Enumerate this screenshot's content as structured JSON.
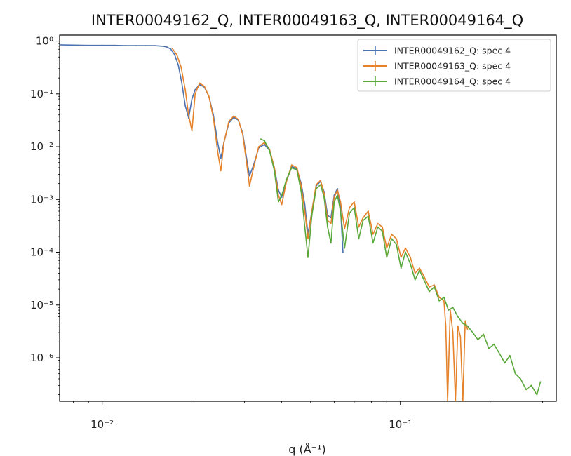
{
  "chart_data": {
    "type": "line",
    "title": "INTER00049162_Q, INTER00049163_Q, INTER00049164_Q",
    "xlabel": "q (Å⁻¹)",
    "ylabel": "",
    "xscale": "log",
    "yscale": "log",
    "xlim": [
      0.0072,
      0.3333
    ],
    "ylim": [
      1.5e-07,
      1.3
    ],
    "x_ticks": [
      {
        "value": 0.01,
        "label": "10⁻²"
      },
      {
        "value": 0.1,
        "label": "10⁻¹"
      }
    ],
    "y_ticks": [
      {
        "value": 1,
        "label": "10⁰"
      },
      {
        "value": 0.1,
        "label": "10⁻¹"
      },
      {
        "value": 0.01,
        "label": "10⁻²"
      },
      {
        "value": 0.001,
        "label": "10⁻³"
      },
      {
        "value": 0.0001,
        "label": "10⁻⁴"
      },
      {
        "value": 1e-05,
        "label": "10⁻⁵"
      },
      {
        "value": 1e-06,
        "label": "10⁻⁶"
      }
    ],
    "grid": false,
    "legend_position": "top-right",
    "series": [
      {
        "name": "INTER00049162_Q: spec 4",
        "color": "#4c72b0",
        "x": [
          0.0072,
          0.008,
          0.009,
          0.01,
          0.011,
          0.012,
          0.013,
          0.014,
          0.015,
          0.016,
          0.0165,
          0.017,
          0.0175,
          0.018,
          0.0185,
          0.019,
          0.0195,
          0.02,
          0.0205,
          0.0212,
          0.022,
          0.0228,
          0.0236,
          0.0244,
          0.025,
          0.0256,
          0.0266,
          0.0276,
          0.0286,
          0.0296,
          0.0305,
          0.0312,
          0.0322,
          0.0335,
          0.035,
          0.0364,
          0.0378,
          0.039,
          0.04,
          0.0415,
          0.0432,
          0.045,
          0.0465,
          0.0478,
          0.049,
          0.0505,
          0.0522,
          0.054,
          0.0555,
          0.057,
          0.0585,
          0.06,
          0.0615,
          0.063,
          0.0642
        ],
        "y": [
          0.85,
          0.84,
          0.83,
          0.83,
          0.83,
          0.82,
          0.82,
          0.82,
          0.82,
          0.8,
          0.77,
          0.7,
          0.55,
          0.35,
          0.16,
          0.06,
          0.035,
          0.08,
          0.12,
          0.15,
          0.135,
          0.09,
          0.04,
          0.012,
          0.006,
          0.012,
          0.028,
          0.036,
          0.032,
          0.018,
          0.006,
          0.0028,
          0.0045,
          0.0095,
          0.011,
          0.0085,
          0.004,
          0.0015,
          0.0011,
          0.0022,
          0.0042,
          0.0038,
          0.002,
          0.0008,
          0.00022,
          0.0006,
          0.0018,
          0.0022,
          0.0014,
          0.0005,
          0.00045,
          0.0012,
          0.0016,
          0.0007,
          0.0001
        ]
      },
      {
        "name": "INTER00049163_Q: spec 4",
        "color": "#e6822a",
        "x": [
          0.0172,
          0.0178,
          0.0184,
          0.019,
          0.0195,
          0.02,
          0.0205,
          0.0212,
          0.022,
          0.0228,
          0.0236,
          0.0244,
          0.025,
          0.0256,
          0.0266,
          0.0276,
          0.0286,
          0.0296,
          0.0305,
          0.0312,
          0.0322,
          0.0335,
          0.035,
          0.0364,
          0.0378,
          0.039,
          0.04,
          0.0415,
          0.0432,
          0.045,
          0.0465,
          0.0478,
          0.049,
          0.0505,
          0.0522,
          0.054,
          0.0555,
          0.057,
          0.0585,
          0.06,
          0.0615,
          0.063,
          0.065,
          0.0675,
          0.07,
          0.0725,
          0.075,
          0.078,
          0.081,
          0.084,
          0.087,
          0.09,
          0.0935,
          0.097,
          0.1005,
          0.104,
          0.108,
          0.112,
          0.116,
          0.12,
          0.125,
          0.13,
          0.135,
          0.14,
          0.142,
          0.144,
          0.147,
          0.15,
          0.153,
          0.156,
          0.159,
          0.162,
          0.165,
          0.168
        ],
        "y": [
          0.72,
          0.55,
          0.32,
          0.12,
          0.04,
          0.02,
          0.1,
          0.16,
          0.14,
          0.09,
          0.035,
          0.008,
          0.0035,
          0.012,
          0.03,
          0.038,
          0.033,
          0.017,
          0.005,
          0.0018,
          0.004,
          0.01,
          0.012,
          0.009,
          0.004,
          0.0012,
          0.0008,
          0.0022,
          0.0045,
          0.004,
          0.0018,
          0.0006,
          0.00018,
          0.0006,
          0.0019,
          0.0023,
          0.0013,
          0.0004,
          0.00035,
          0.0011,
          0.0015,
          0.0009,
          0.00028,
          0.0007,
          0.0009,
          0.0003,
          0.00045,
          0.0006,
          0.00022,
          0.00035,
          0.0003,
          0.00012,
          0.00022,
          0.00018,
          8e-05,
          0.00012,
          8e-05,
          4e-05,
          5e-05,
          3.5e-05,
          2.2e-05,
          2.4e-05,
          1.4e-05,
          1.2e-05,
          4e-06,
          1.5e-07,
          8e-06,
          3e-06,
          1.5e-07,
          4e-06,
          2.5e-06,
          1.5e-07,
          5e-06,
          3.5e-06
        ]
      },
      {
        "name": "INTER00049164_Q: spec 4",
        "color": "#5aa83a",
        "x": [
          0.034,
          0.035,
          0.0364,
          0.0378,
          0.039,
          0.04,
          0.0415,
          0.0432,
          0.045,
          0.0465,
          0.0478,
          0.049,
          0.0505,
          0.0522,
          0.054,
          0.0555,
          0.057,
          0.0585,
          0.06,
          0.0615,
          0.063,
          0.065,
          0.0675,
          0.07,
          0.0725,
          0.075,
          0.078,
          0.081,
          0.084,
          0.087,
          0.09,
          0.0935,
          0.097,
          0.1005,
          0.104,
          0.108,
          0.112,
          0.116,
          0.12,
          0.125,
          0.13,
          0.135,
          0.14,
          0.145,
          0.15,
          0.156,
          0.162,
          0.168,
          0.175,
          0.182,
          0.19,
          0.198,
          0.206,
          0.215,
          0.224,
          0.233,
          0.243,
          0.253,
          0.264,
          0.275,
          0.287,
          0.295
        ],
        "y": [
          0.014,
          0.013,
          0.0085,
          0.0035,
          0.0009,
          0.0012,
          0.0024,
          0.004,
          0.0036,
          0.0014,
          0.0003,
          8e-05,
          0.0005,
          0.0016,
          0.0019,
          0.0011,
          0.0003,
          0.00015,
          0.0009,
          0.0012,
          0.0006,
          0.00012,
          0.00055,
          0.0007,
          0.00018,
          0.0004,
          0.00048,
          0.00015,
          0.0003,
          0.00025,
          8e-05,
          0.00018,
          0.00014,
          5e-05,
          0.0001,
          6e-05,
          3e-05,
          4.5e-05,
          3e-05,
          1.8e-05,
          2.2e-05,
          1.2e-05,
          1.4e-05,
          8e-06,
          9e-06,
          6e-06,
          4.5e-06,
          4e-06,
          3e-06,
          2.2e-06,
          2.8e-06,
          1.5e-06,
          1.8e-06,
          1.2e-06,
          8e-07,
          1.1e-06,
          5e-07,
          4e-07,
          2.5e-07,
          3e-07,
          2e-07,
          3.5e-07
        ]
      }
    ]
  }
}
